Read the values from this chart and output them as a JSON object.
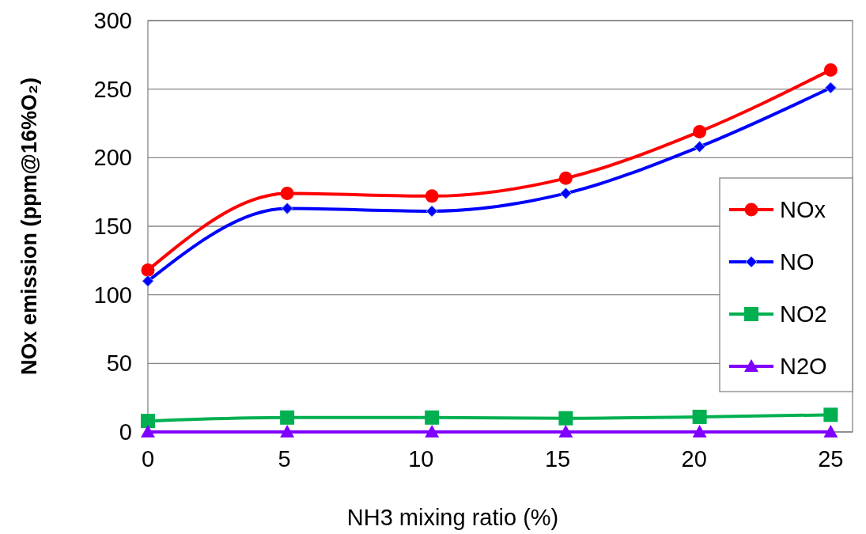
{
  "chart_data": {
    "type": "line",
    "xlabel": "NH3 mixing ratio (%)",
    "ylabel": "NOx emission (ppm@16%O₂)",
    "xlim": [
      0,
      25.8
    ],
    "xticks": [
      0,
      5,
      10,
      15,
      20,
      25
    ],
    "ylim": [
      0,
      300
    ],
    "yticks": [
      0,
      50,
      100,
      150,
      200,
      250,
      300
    ],
    "grid": "y",
    "legend": "right",
    "series": [
      {
        "name": "NOx",
        "color": "#ff0000",
        "marker": "circle",
        "x": [
          0,
          5.1,
          10.4,
          15.3,
          20.2,
          25
        ],
        "values": [
          118,
          174,
          172,
          185,
          219,
          264
        ]
      },
      {
        "name": "NO",
        "color": "#0000ff",
        "marker": "diamond",
        "x": [
          0,
          5.1,
          10.4,
          15.3,
          20.2,
          25
        ],
        "values": [
          110,
          163,
          161,
          174,
          208,
          251
        ]
      },
      {
        "name": "NO2",
        "color": "#00b050",
        "marker": "square",
        "x": [
          0,
          5.1,
          10.4,
          15.3,
          20.2,
          25
        ],
        "values": [
          8,
          10.5,
          10.5,
          10,
          11,
          12.5
        ]
      },
      {
        "name": "N2O",
        "color": "#7f00ff",
        "marker": "triangle",
        "x": [
          0,
          5.1,
          10.4,
          15.3,
          20.2,
          25
        ],
        "values": [
          0,
          0,
          0,
          0,
          0,
          0
        ]
      }
    ]
  }
}
